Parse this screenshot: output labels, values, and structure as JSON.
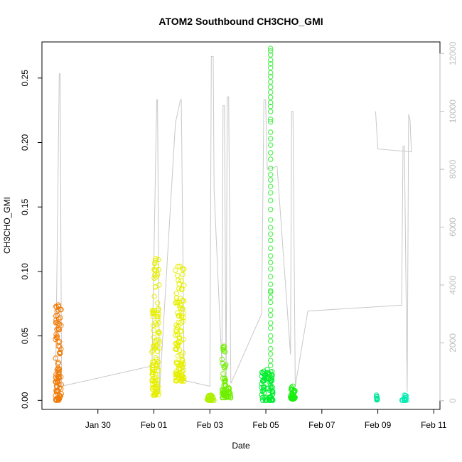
{
  "colors": {
    "altitude_line": "#c8c8c8",
    "right_axis": "#bdbdbd",
    "frame": "#000000"
  },
  "chart_data": {
    "type": "scatter",
    "title": "ATOM2 Southbound CH3CHO_GMI",
    "xlabel": "Date",
    "ylabel": "CH3CHO_GMI",
    "x_unit": "days since Jan 28",
    "xlim": [
      0.0,
      14.22
    ],
    "ylim": [
      -0.007,
      0.278
    ],
    "y_ticks": [
      0.0,
      0.05,
      0.1,
      0.15,
      0.2,
      0.25
    ],
    "y_tick_labels": [
      "0.00",
      "0.05",
      "0.10",
      "0.15",
      "0.20",
      "0.25"
    ],
    "x_ticks": [
      2.0,
      4.0,
      6.0,
      8.0,
      10.0,
      12.0,
      14.0
    ],
    "x_tick_labels": [
      "Jan 30",
      "Feb 01",
      "Feb 03",
      "Feb 05",
      "Feb 07",
      "Feb 09",
      "Feb 11"
    ],
    "right_axis": {
      "label": "",
      "ylim": [
        -300,
        12400
      ],
      "ticks": [
        0,
        2000,
        4000,
        6000,
        8000,
        10000,
        12000
      ],
      "tick_labels": [
        "0",
        "2000",
        "4000",
        "6000",
        "8000",
        "10000",
        "12000"
      ]
    },
    "grid": false,
    "legend": "none",
    "flights": [
      {
        "x_start": 0.48,
        "x_end": 0.7,
        "y_min": 0.0,
        "y_max": 0.074,
        "color": "#f07c0a",
        "count": 90
      },
      {
        "x_start": 3.93,
        "x_end": 4.2,
        "y_min": 0.004,
        "y_max": 0.11,
        "color": "#e6ef00",
        "count": 110
      },
      {
        "x_start": 4.77,
        "x_end": 5.08,
        "y_min": 0.015,
        "y_max": 0.104,
        "color": "#e6ef00",
        "count": 110
      },
      {
        "x_start": 5.9,
        "x_end": 6.15,
        "y_min": 0.0,
        "y_max": 0.004,
        "color": "#aef000",
        "count": 25
      },
      {
        "x_start": 6.43,
        "x_end": 6.58,
        "y_min": 0.002,
        "y_max": 0.042,
        "color": "#6fef00",
        "count": 40
      },
      {
        "x_start": 6.58,
        "x_end": 6.75,
        "y_min": 0.002,
        "y_max": 0.01,
        "color": "#6fef00",
        "count": 20
      },
      {
        "x_start": 7.85,
        "x_end": 8.25,
        "y_min": 0.0,
        "y_max": 0.024,
        "color": "#00ee30",
        "count": 70
      },
      {
        "x_start": 8.88,
        "x_end": 9.05,
        "y_min": 0.001,
        "y_max": 0.011,
        "color": "#1aee10",
        "count": 30
      },
      {
        "x_start": 11.92,
        "x_end": 11.98,
        "y_min": 0.0,
        "y_max": 0.004,
        "color": "#00e89a",
        "count": 8
      },
      {
        "x_start": 12.85,
        "x_end": 13.05,
        "y_min": 0.0,
        "y_max": 0.004,
        "color": "#00ebb0",
        "count": 14
      }
    ],
    "vertical_profile": {
      "x": 8.17,
      "color": "#3aee3a",
      "y_values": [
        0.273,
        0.271,
        0.268,
        0.264,
        0.261,
        0.258,
        0.254,
        0.251,
        0.247,
        0.243,
        0.239,
        0.235,
        0.231,
        0.228,
        0.224,
        0.218,
        0.216,
        0.208,
        0.203,
        0.198,
        0.192,
        0.187,
        0.18,
        0.175,
        0.171,
        0.166,
        0.161,
        0.155,
        0.148,
        0.14,
        0.134,
        0.129,
        0.124,
        0.118,
        0.112,
        0.107,
        0.102,
        0.096,
        0.09,
        0.085,
        0.084,
        0.08,
        0.076,
        0.07,
        0.066,
        0.06,
        0.056,
        0.05,
        0.046,
        0.04,
        0.036,
        0.031,
        0.027,
        0.022,
        0.018
      ]
    },
    "altitude_track": [
      [
        0.48,
        0
      ],
      [
        0.62,
        11300
      ],
      [
        0.65,
        11300
      ],
      [
        0.7,
        500
      ],
      [
        3.93,
        1200
      ],
      [
        4.1,
        10400
      ],
      [
        4.13,
        10400
      ],
      [
        4.2,
        300
      ],
      [
        4.77,
        9600
      ],
      [
        4.95,
        10400
      ],
      [
        4.98,
        10400
      ],
      [
        5.08,
        700
      ],
      [
        6.0,
        500
      ],
      [
        6.05,
        11900
      ],
      [
        6.12,
        11900
      ],
      [
        6.15,
        7300
      ],
      [
        6.43,
        1200
      ],
      [
        6.47,
        10200
      ],
      [
        6.52,
        10200
      ],
      [
        6.58,
        200
      ],
      [
        6.62,
        10500
      ],
      [
        6.67,
        10500
      ],
      [
        6.75,
        600
      ],
      [
        7.85,
        3000
      ],
      [
        7.93,
        10400
      ],
      [
        7.99,
        10400
      ],
      [
        8.05,
        8000
      ],
      [
        8.4,
        8100
      ],
      [
        8.88,
        1600
      ],
      [
        8.92,
        10000
      ],
      [
        8.97,
        10000
      ],
      [
        9.05,
        500
      ],
      [
        9.5,
        3100
      ],
      [
        12.85,
        3300
      ],
      [
        12.9,
        8800
      ],
      [
        12.95,
        8800
      ],
      [
        13.05,
        300
      ],
      [
        13.1,
        9900
      ],
      [
        13.15,
        9700
      ],
      [
        13.2,
        8600
      ],
      [
        12.0,
        8700
      ],
      [
        11.92,
        10000
      ]
    ]
  }
}
